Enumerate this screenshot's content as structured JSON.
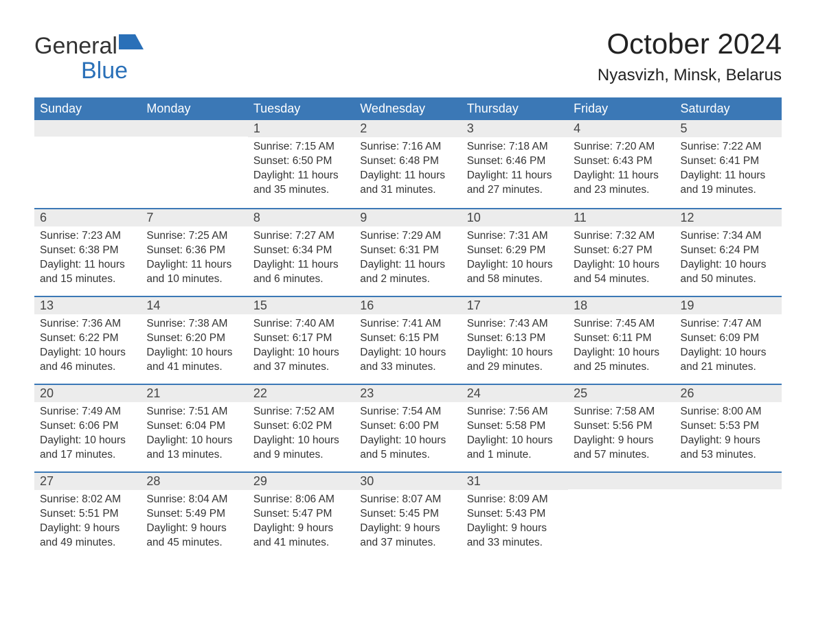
{
  "brand": {
    "name_part1": "General",
    "name_part2": "Blue",
    "accent_color": "#2a70b8"
  },
  "title": "October 2024",
  "location": "Nyasvizh, Minsk, Belarus",
  "colors": {
    "header_bg": "#3b78b6",
    "header_text": "#ffffff",
    "daynum_bg": "#ececec",
    "row_border": "#3b78b6",
    "body_text": "#333333",
    "page_bg": "#ffffff"
  },
  "calendar": {
    "day_headers": [
      "Sunday",
      "Monday",
      "Tuesday",
      "Wednesday",
      "Thursday",
      "Friday",
      "Saturday"
    ],
    "weeks": [
      [
        null,
        null,
        {
          "n": "1",
          "sunrise": "7:15 AM",
          "sunset": "6:50 PM",
          "daylight": "11 hours and 35 minutes."
        },
        {
          "n": "2",
          "sunrise": "7:16 AM",
          "sunset": "6:48 PM",
          "daylight": "11 hours and 31 minutes."
        },
        {
          "n": "3",
          "sunrise": "7:18 AM",
          "sunset": "6:46 PM",
          "daylight": "11 hours and 27 minutes."
        },
        {
          "n": "4",
          "sunrise": "7:20 AM",
          "sunset": "6:43 PM",
          "daylight": "11 hours and 23 minutes."
        },
        {
          "n": "5",
          "sunrise": "7:22 AM",
          "sunset": "6:41 PM",
          "daylight": "11 hours and 19 minutes."
        }
      ],
      [
        {
          "n": "6",
          "sunrise": "7:23 AM",
          "sunset": "6:38 PM",
          "daylight": "11 hours and 15 minutes."
        },
        {
          "n": "7",
          "sunrise": "7:25 AM",
          "sunset": "6:36 PM",
          "daylight": "11 hours and 10 minutes."
        },
        {
          "n": "8",
          "sunrise": "7:27 AM",
          "sunset": "6:34 PM",
          "daylight": "11 hours and 6 minutes."
        },
        {
          "n": "9",
          "sunrise": "7:29 AM",
          "sunset": "6:31 PM",
          "daylight": "11 hours and 2 minutes."
        },
        {
          "n": "10",
          "sunrise": "7:31 AM",
          "sunset": "6:29 PM",
          "daylight": "10 hours and 58 minutes."
        },
        {
          "n": "11",
          "sunrise": "7:32 AM",
          "sunset": "6:27 PM",
          "daylight": "10 hours and 54 minutes."
        },
        {
          "n": "12",
          "sunrise": "7:34 AM",
          "sunset": "6:24 PM",
          "daylight": "10 hours and 50 minutes."
        }
      ],
      [
        {
          "n": "13",
          "sunrise": "7:36 AM",
          "sunset": "6:22 PM",
          "daylight": "10 hours and 46 minutes."
        },
        {
          "n": "14",
          "sunrise": "7:38 AM",
          "sunset": "6:20 PM",
          "daylight": "10 hours and 41 minutes."
        },
        {
          "n": "15",
          "sunrise": "7:40 AM",
          "sunset": "6:17 PM",
          "daylight": "10 hours and 37 minutes."
        },
        {
          "n": "16",
          "sunrise": "7:41 AM",
          "sunset": "6:15 PM",
          "daylight": "10 hours and 33 minutes."
        },
        {
          "n": "17",
          "sunrise": "7:43 AM",
          "sunset": "6:13 PM",
          "daylight": "10 hours and 29 minutes."
        },
        {
          "n": "18",
          "sunrise": "7:45 AM",
          "sunset": "6:11 PM",
          "daylight": "10 hours and 25 minutes."
        },
        {
          "n": "19",
          "sunrise": "7:47 AM",
          "sunset": "6:09 PM",
          "daylight": "10 hours and 21 minutes."
        }
      ],
      [
        {
          "n": "20",
          "sunrise": "7:49 AM",
          "sunset": "6:06 PM",
          "daylight": "10 hours and 17 minutes."
        },
        {
          "n": "21",
          "sunrise": "7:51 AM",
          "sunset": "6:04 PM",
          "daylight": "10 hours and 13 minutes."
        },
        {
          "n": "22",
          "sunrise": "7:52 AM",
          "sunset": "6:02 PM",
          "daylight": "10 hours and 9 minutes."
        },
        {
          "n": "23",
          "sunrise": "7:54 AM",
          "sunset": "6:00 PM",
          "daylight": "10 hours and 5 minutes."
        },
        {
          "n": "24",
          "sunrise": "7:56 AM",
          "sunset": "5:58 PM",
          "daylight": "10 hours and 1 minute."
        },
        {
          "n": "25",
          "sunrise": "7:58 AM",
          "sunset": "5:56 PM",
          "daylight": "9 hours and 57 minutes."
        },
        {
          "n": "26",
          "sunrise": "8:00 AM",
          "sunset": "5:53 PM",
          "daylight": "9 hours and 53 minutes."
        }
      ],
      [
        {
          "n": "27",
          "sunrise": "8:02 AM",
          "sunset": "5:51 PM",
          "daylight": "9 hours and 49 minutes."
        },
        {
          "n": "28",
          "sunrise": "8:04 AM",
          "sunset": "5:49 PM",
          "daylight": "9 hours and 45 minutes."
        },
        {
          "n": "29",
          "sunrise": "8:06 AM",
          "sunset": "5:47 PM",
          "daylight": "9 hours and 41 minutes."
        },
        {
          "n": "30",
          "sunrise": "8:07 AM",
          "sunset": "5:45 PM",
          "daylight": "9 hours and 37 minutes."
        },
        {
          "n": "31",
          "sunrise": "8:09 AM",
          "sunset": "5:43 PM",
          "daylight": "9 hours and 33 minutes."
        },
        null,
        null
      ]
    ],
    "labels": {
      "sunrise": "Sunrise:",
      "sunset": "Sunset:",
      "daylight": "Daylight:"
    }
  }
}
